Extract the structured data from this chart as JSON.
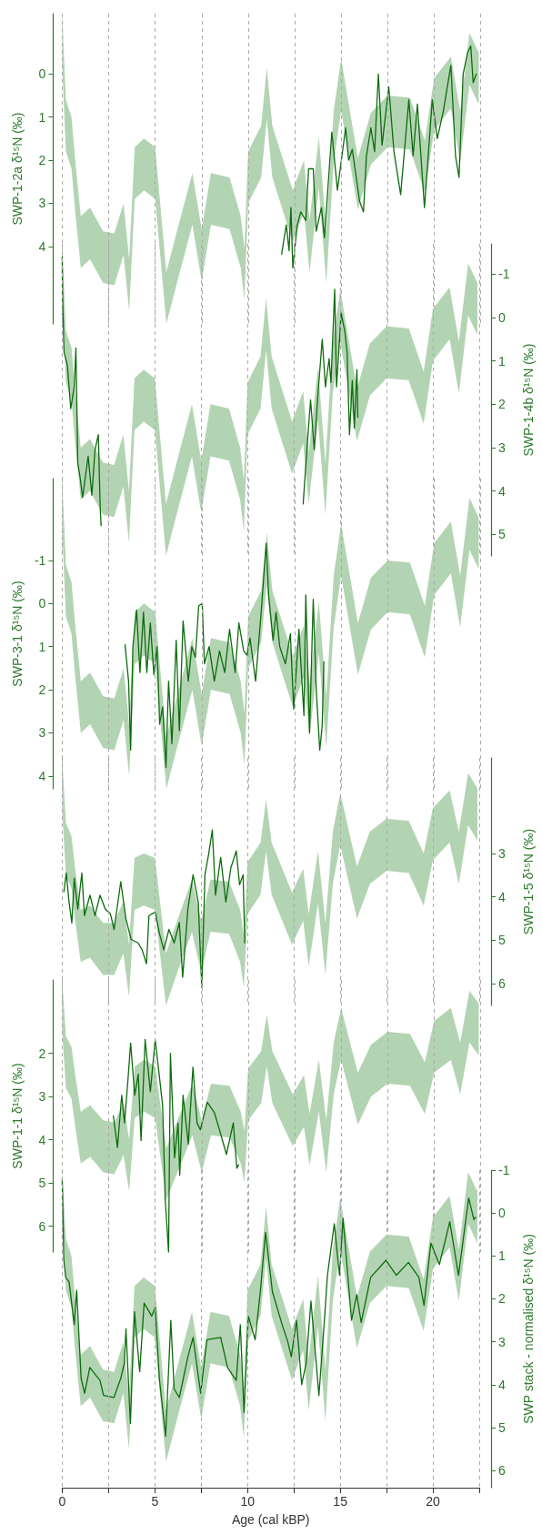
{
  "chart_data": [
    {
      "type": "line",
      "ylabel": "SWP-1-2a δ¹⁵N (‰)",
      "xlim": [
        0,
        22.5
      ],
      "xticks": [
        0,
        {
          "value": 2.5,
          "label": null
        },
        5,
        {
          "value": 7.5,
          "label": null
        },
        10,
        {
          "value": 12.5,
          "label": null
        },
        15,
        {
          "value": 17.5,
          "label": null
        },
        20,
        {
          "value": 22.5,
          "label": null
        }
      ],
      "ylim": [
        5.8,
        -1.4
      ],
      "yticks": [
        0,
        1,
        2,
        3,
        4
      ],
      "grid": "x",
      "tick_labels": "y",
      "series": [
        {
          "color": "#b3d4b3",
          "x": [
            0,
            0.2,
            0.5,
            0.7,
            1.0,
            1.5,
            2.2,
            2.8,
            3.3,
            3.6,
            3.9,
            4.4,
            5.0,
            5.6,
            6.2,
            7.0,
            7.5,
            8.0,
            9.0,
            9.6,
            9.8,
            10.0,
            10.7,
            11.0,
            11.3,
            12.4,
            13.0,
            13.3,
            13.8,
            14.2,
            14.6,
            15.0,
            15.9,
            16.6,
            17.5,
            18.7,
            19.5,
            20.0,
            20.9,
            21.4,
            21.9,
            22.4
          ],
          "values": [
            null,
            null,
            null,
            null,
            null,
            null,
            null,
            null,
            null,
            null,
            null,
            null,
            null,
            null,
            null,
            null,
            null,
            null,
            null,
            null,
            null,
            null,
            null,
            null,
            null,
            null,
            null,
            null,
            null,
            null,
            null,
            null,
            null,
            null,
            null,
            null,
            null,
            null,
            null,
            null,
            null,
            null
          ],
          "lower": [
            -1.4,
            0.6,
            1.0,
            2.0,
            3.3,
            3.1,
            3.65,
            3.7,
            3.0,
            4.3,
            1.7,
            1.5,
            1.7,
            4.6,
            3.6,
            2.3,
            3.6,
            2.3,
            2.4,
            3.3,
            4.05,
            1.8,
            1.2,
            -0.15,
            1.2,
            2.7,
            2.0,
            3.4,
            1.45,
            3.65,
            0.85,
            -0.35,
            1.95,
            0.9,
            0.5,
            0.55,
            1.55,
            0.1,
            -0.4,
            0.85,
            -0.95,
            -0.5
          ],
          "upper": [
            -0.2,
            1.8,
            2.2,
            3.2,
            4.5,
            4.3,
            4.85,
            4.9,
            4.2,
            5.5,
            2.9,
            2.7,
            2.9,
            5.8,
            4.8,
            3.5,
            4.8,
            3.5,
            3.6,
            4.5,
            5.25,
            3.0,
            2.4,
            1.05,
            2.4,
            3.9,
            3.2,
            4.6,
            2.65,
            4.85,
            2.05,
            0.85,
            3.15,
            2.1,
            1.7,
            1.75,
            2.75,
            1.3,
            0.8,
            2.05,
            0.25,
            0.7
          ]
        },
        {
          "color": "#0d6b0d",
          "x": [
            11.8,
            12.05,
            12.2,
            12.3,
            12.4,
            12.64,
            12.83,
            13.1,
            13.25,
            13.5,
            13.66,
            13.94,
            14.1,
            14.5,
            14.8,
            15.24,
            15.4,
            15.6,
            15.99,
            16.2,
            16.36,
            16.6,
            16.8,
            17.0,
            17.2,
            17.56,
            17.84,
            18.2,
            18.64,
            18.87,
            19.1,
            19.48,
            19.9,
            20.17,
            20.5,
            20.9,
            21.15,
            21.34,
            21.56,
            21.8,
            21.97,
            22.1,
            22.27
          ],
          "values": [
            4.18,
            3.5,
            4.1,
            3.1,
            4.5,
            3.5,
            3.2,
            3.4,
            2.2,
            2.2,
            3.65,
            3.1,
            3.8,
            1.35,
            2.7,
            1.25,
            2.0,
            1.75,
            2.95,
            3.2,
            1.9,
            1.25,
            1.8,
            0.0,
            1.65,
            0.3,
            1.8,
            2.8,
            0.6,
            1.9,
            0.7,
            3.1,
            0.6,
            1.5,
            0.85,
            -0.2,
            1.9,
            2.4,
            0.0,
            -0.5,
            -0.65,
            0.2,
            0.0
          ]
        }
      ]
    },
    {
      "type": "line",
      "ylabel": "SWP-1-4b δ¹⁵N (‰)",
      "xlim": [
        0,
        22.5
      ],
      "xticks": [
        0,
        {
          "value": 2.5,
          "label": null
        },
        5,
        {
          "value": 7.5,
          "label": null
        },
        10,
        {
          "value": 12.5,
          "label": null
        },
        15,
        {
          "value": 17.5,
          "label": null
        },
        20,
        {
          "value": 22.5,
          "label": null
        }
      ],
      "ylim": [
        5.5,
        -1.7
      ],
      "yticks": [
        -1,
        0,
        1,
        2,
        3,
        4,
        5
      ],
      "grid": "x",
      "tick_labels": "y",
      "series": [
        {
          "color": "#b3d4b3",
          "x": [
            0,
            0.2,
            0.5,
            0.7,
            1.0,
            1.5,
            2.2,
            2.8,
            3.3,
            3.6,
            3.9,
            4.4,
            5.0,
            5.6,
            6.2,
            7.0,
            7.5,
            8.0,
            9.0,
            9.6,
            9.8,
            10.0,
            10.7,
            11.0,
            11.3,
            12.4,
            13.0,
            13.3,
            13.8,
            14.2,
            14.6,
            15.0,
            15.9,
            16.6,
            17.5,
            18.7,
            19.5,
            20.0,
            20.9,
            21.4,
            21.9,
            22.4
          ],
          "values": [
            null,
            null,
            null,
            null,
            null,
            null,
            null,
            null,
            null,
            null,
            null,
            null,
            null,
            null,
            null,
            null,
            null,
            null,
            null,
            null,
            null,
            null,
            null,
            null,
            null,
            null,
            null,
            null,
            null,
            null,
            null,
            null,
            null,
            null,
            null,
            null,
            null,
            null,
            null,
            null,
            null,
            null
          ],
          "lower": [
            -1.7,
            0.3,
            0.7,
            1.7,
            3.0,
            2.8,
            3.35,
            3.4,
            2.7,
            4.0,
            1.4,
            1.2,
            1.4,
            4.3,
            3.3,
            2.0,
            3.3,
            2.0,
            2.1,
            3.0,
            3.75,
            1.5,
            0.9,
            -0.45,
            0.9,
            2.4,
            1.7,
            3.1,
            1.15,
            3.35,
            0.55,
            -0.65,
            1.65,
            0.6,
            0.2,
            0.25,
            1.25,
            -0.2,
            -0.7,
            0.55,
            -1.25,
            -0.8
          ],
          "upper": [
            -0.5,
            1.5,
            1.9,
            2.9,
            4.2,
            4.0,
            4.55,
            4.6,
            3.9,
            5.2,
            2.6,
            2.4,
            2.6,
            5.5,
            4.5,
            3.2,
            4.5,
            3.2,
            3.3,
            4.2,
            4.95,
            2.7,
            2.1,
            0.75,
            2.1,
            3.6,
            2.9,
            4.3,
            2.35,
            4.55,
            1.75,
            0.55,
            2.85,
            1.8,
            1.4,
            1.45,
            2.45,
            1.0,
            0.5,
            1.75,
            -0.05,
            0.4
          ]
        },
        {
          "color": "#0d6b0d",
          "x": [
            0,
            0.02,
            0.1,
            0.28,
            0.46,
            0.65,
            0.74,
            0.84,
            0.97,
            1.1,
            1.4,
            1.6,
            1.77,
            1.95,
            2.05,
            2.1,
            7,
            13.0,
            13.2,
            13.4,
            13.6,
            13.8,
            14.03,
            14.2,
            14.4,
            14.5,
            14.7,
            14.8,
            15.05,
            15.24,
            15.37,
            15.5,
            15.65,
            15.76,
            15.9,
            15.95
          ],
          "values": [
            -1.4,
            -0.5,
            0.8,
            1.1,
            2.1,
            1.6,
            0.7,
            3.35,
            3.7,
            4.15,
            3.2,
            4.1,
            3.05,
            2.7,
            4.4,
            4.8,
            null,
            4.3,
            3.05,
            1.9,
            3.05,
            1.75,
            0.5,
            1.6,
            0.95,
            1.5,
            -0.65,
            1.6,
            -0.1,
            0.3,
            0.8,
            2.7,
            1.45,
            2.55,
            1.2,
            2.3
          ]
        }
      ]
    },
    {
      "type": "line",
      "ylabel": "SWP-3-1 δ¹⁵N (‰)",
      "xlim": [
        0,
        22.5
      ],
      "xticks": [
        0,
        {
          "value": 2.5,
          "label": null
        },
        5,
        {
          "value": 7.5,
          "label": null
        },
        10,
        {
          "value": 12.5,
          "label": null
        },
        15,
        {
          "value": 17.5,
          "label": null
        },
        20,
        {
          "value": 22.5,
          "label": null
        }
      ],
      "ylim": [
        4.3,
        -2.9
      ],
      "yticks": [
        -1,
        0,
        1,
        2,
        3,
        4
      ],
      "grid": "x",
      "tick_labels": "y",
      "series": [
        {
          "color": "#b3d4b3",
          "x": [
            0,
            0.2,
            0.5,
            0.7,
            1.0,
            1.5,
            2.2,
            2.8,
            3.3,
            3.6,
            3.9,
            4.4,
            5.0,
            5.6,
            6.2,
            7.0,
            7.5,
            8.0,
            9.0,
            9.6,
            9.8,
            10.0,
            10.7,
            11.0,
            11.3,
            12.4,
            13.0,
            13.3,
            13.8,
            14.2,
            14.6,
            15.0,
            15.9,
            16.6,
            17.5,
            18.7,
            19.5,
            20.0,
            20.9,
            21.4,
            21.9,
            22.4
          ],
          "values": [
            null,
            null,
            null,
            null,
            null,
            null,
            null,
            null,
            null,
            null,
            null,
            null,
            null,
            null,
            null,
            null,
            null,
            null,
            null,
            null,
            null,
            null,
            null,
            null,
            null,
            null,
            null,
            null,
            null,
            null,
            null,
            null,
            null,
            null,
            null,
            null,
            null,
            null,
            null,
            null,
            null,
            null
          ],
          "lower": [
            -2.9,
            -0.9,
            -0.5,
            0.5,
            1.8,
            1.6,
            2.15,
            2.2,
            1.5,
            2.8,
            0.2,
            0.0,
            0.2,
            3.1,
            2.1,
            0.8,
            2.1,
            0.8,
            0.9,
            1.8,
            2.55,
            0.3,
            -0.3,
            -1.65,
            -0.3,
            1.2,
            0.5,
            1.9,
            -0.05,
            2.15,
            -0.65,
            -1.85,
            0.45,
            -0.6,
            -1.0,
            -0.95,
            0.05,
            -1.4,
            -1.9,
            -0.65,
            -2.45,
            -2.0
          ],
          "upper": [
            -1.7,
            0.3,
            0.7,
            1.7,
            3.0,
            2.8,
            3.35,
            3.4,
            2.7,
            4.0,
            1.4,
            1.2,
            1.4,
            4.3,
            3.3,
            2.0,
            3.3,
            2.0,
            2.1,
            3.0,
            3.75,
            1.5,
            0.9,
            -0.45,
            0.9,
            2.4,
            1.7,
            3.1,
            1.15,
            3.35,
            0.55,
            -0.65,
            1.65,
            0.6,
            0.2,
            0.25,
            1.25,
            -0.2,
            -0.7,
            0.55,
            -1.25,
            -0.8
          ]
        },
        {
          "color": "#0d6b0d",
          "x": [
            3.38,
            3.57,
            3.68,
            3.8,
            4.0,
            4.18,
            4.37,
            4.55,
            4.74,
            4.93,
            5.1,
            5.24,
            5.4,
            5.58,
            5.72,
            5.9,
            6.13,
            6.3,
            6.5,
            6.78,
            6.97,
            7.16,
            7.34,
            7.53,
            7.65,
            7.9,
            8.18,
            8.46,
            8.74,
            9.0,
            9.3,
            9.5,
            9.76,
            9.94,
            10.1,
            10.4,
            10.7,
            10.97,
            11.1,
            11.34,
            11.5,
            11.7,
            12.0,
            12.27,
            12.45,
            12.73,
            13.0,
            13.1,
            13.3,
            13.5,
            13.66,
            13.85,
            13.98,
            14.07
          ],
          "values": [
            0.95,
            1.8,
            3.4,
            1.0,
            0.15,
            1.6,
            0.2,
            1.6,
            0.45,
            1.65,
            1.0,
            2.8,
            2.4,
            3.8,
            1.8,
            3.25,
            0.85,
            2.95,
            0.4,
            1.8,
            1.0,
            1.25,
            0.05,
            0.0,
            1.4,
            1.0,
            1.8,
            1.1,
            1.6,
            0.6,
            1.6,
            0.45,
            1.1,
            1.2,
            0.8,
            1.8,
            0.2,
            -1.4,
            -0.2,
            0.85,
            0.2,
            1.0,
            1.4,
            0.7,
            2.45,
            0.6,
            2.6,
            -0.2,
            3.0,
            -0.1,
            2.0,
            3.4,
            2.85,
            1.35
          ]
        }
      ]
    },
    {
      "type": "line",
      "ylabel": "SWP-1-5 δ¹⁵N (‰)",
      "xlim": [
        0,
        22.5
      ],
      "xticks": [
        0,
        {
          "value": 2.5,
          "label": null
        },
        5,
        {
          "value": 7.5,
          "label": null
        },
        10,
        {
          "value": 12.5,
          "label": null
        },
        15,
        {
          "value": 17.5,
          "label": null
        },
        20,
        {
          "value": 22.5,
          "label": null
        }
      ],
      "ylim": [
        6.5,
        0.8
      ],
      "yticks": [
        3,
        4,
        5,
        6
      ],
      "grid": "x",
      "tick_labels": "y",
      "series": [
        {
          "color": "#b3d4b3",
          "x": [
            0,
            0.2,
            0.5,
            0.7,
            1.0,
            1.5,
            2.2,
            2.8,
            3.3,
            3.6,
            3.9,
            4.4,
            5.0,
            5.6,
            6.2,
            7.0,
            7.5,
            8.0,
            9.0,
            9.6,
            9.8,
            10.0,
            10.7,
            11.0,
            11.3,
            12.4,
            13.0,
            13.3,
            13.8,
            14.2,
            14.6,
            15.0,
            15.9,
            16.6,
            17.5,
            18.7,
            19.5,
            20.0,
            20.9,
            21.4,
            21.9,
            22.4
          ],
          "values": [
            null,
            null,
            null,
            null,
            null,
            null,
            null,
            null,
            null,
            null,
            null,
            null,
            null,
            null,
            null,
            null,
            null,
            null,
            null,
            null,
            null,
            null,
            null,
            null,
            null,
            null,
            null,
            null,
            null,
            null,
            null,
            null,
            null,
            null,
            null,
            null,
            null,
            null,
            null,
            null,
            null,
            null
          ],
          "lower": [
            0.8,
            2.3,
            2.6,
            3.35,
            4.3,
            4.2,
            4.6,
            4.6,
            4.1,
            5.1,
            3.1,
            3.0,
            3.1,
            5.3,
            4.55,
            3.6,
            4.55,
            3.6,
            3.65,
            4.3,
            4.9,
            3.2,
            2.75,
            1.75,
            2.75,
            3.9,
            3.35,
            4.4,
            2.95,
            4.6,
            2.5,
            1.6,
            3.3,
            2.5,
            2.2,
            2.25,
            3.0,
            1.95,
            1.55,
            2.5,
            1.15,
            1.5
          ],
          "upper": [
            2.0,
            3.5,
            3.8,
            4.55,
            5.5,
            5.4,
            5.8,
            5.8,
            5.3,
            6.3,
            4.3,
            4.2,
            4.3,
            6.5,
            5.75,
            4.8,
            5.75,
            4.8,
            4.85,
            5.5,
            6.1,
            4.4,
            3.95,
            2.95,
            3.95,
            5.1,
            4.55,
            5.6,
            4.15,
            5.8,
            3.7,
            2.8,
            4.5,
            3.7,
            3.4,
            3.45,
            4.2,
            3.15,
            2.75,
            3.7,
            2.35,
            2.7
          ]
        },
        {
          "color": "#0d6b0d",
          "x": [
            0.09,
            0.22,
            0.37,
            0.52,
            0.65,
            0.84,
            1.06,
            1.2,
            1.5,
            1.77,
            2.04,
            2.32,
            2.6,
            2.8,
            3.16,
            3.44,
            3.72,
            4.09,
            4.31,
            4.55,
            4.68,
            5.02,
            5.24,
            5.48,
            5.76,
            6.04,
            6.32,
            6.5,
            6.78,
            7.06,
            7.34,
            7.53,
            7.7,
            7.9,
            8.1,
            8.27,
            8.55,
            8.83,
            9.1,
            9.39,
            9.57,
            9.76,
            9.85
          ],
          "values": [
            3.88,
            3.45,
            4.12,
            4.6,
            3.57,
            4.28,
            3.45,
            4.43,
            3.96,
            4.43,
            3.96,
            4.28,
            4.39,
            4.75,
            3.65,
            4.51,
            4.98,
            5.06,
            5.22,
            5.54,
            4.43,
            4.35,
            4.83,
            5.22,
            4.75,
            5.06,
            4.59,
            5.85,
            4.28,
            3.49,
            4.12,
            6.09,
            3.49,
            3.02,
            2.46,
            3.96,
            3.09,
            4.12,
            3.33,
            2.94,
            3.72,
            3.49,
            5.06
          ]
        }
      ]
    },
    {
      "type": "line",
      "ylabel": "SWP-1-1 δ¹⁵N (‰)",
      "xlim": [
        0,
        22.5
      ],
      "xticks": [
        0,
        {
          "value": 2.5,
          "label": null
        },
        5,
        {
          "value": 7.5,
          "label": null
        },
        10,
        {
          "value": 12.5,
          "label": null
        },
        15,
        {
          "value": 17.5,
          "label": null
        },
        20,
        {
          "value": 22.5,
          "label": null
        }
      ],
      "ylim": [
        6.6,
        0.3
      ],
      "yticks": [
        2,
        3,
        4,
        5,
        6
      ],
      "grid": "x",
      "tick_labels": "y",
      "series": [
        {
          "color": "#b3d4b3",
          "x": [
            0,
            0.2,
            0.5,
            0.7,
            1.0,
            1.5,
            2.2,
            2.8,
            3.3,
            3.6,
            3.9,
            4.4,
            5.0,
            5.6,
            6.2,
            7.0,
            7.5,
            8.0,
            9.0,
            9.6,
            9.8,
            10.0,
            10.7,
            11.0,
            11.3,
            12.4,
            13.0,
            13.3,
            13.8,
            14.2,
            14.6,
            15.0,
            15.9,
            16.6,
            17.5,
            18.7,
            19.5,
            20.0,
            20.9,
            21.4,
            21.9,
            22.4
          ],
          "values": [
            null,
            null,
            null,
            null,
            null,
            null,
            null,
            null,
            null,
            null,
            null,
            null,
            null,
            null,
            null,
            null,
            null,
            null,
            null,
            null,
            null,
            null,
            null,
            null,
            null,
            null,
            null,
            null,
            null,
            null,
            null,
            null,
            null,
            null,
            null,
            null,
            null,
            null,
            null,
            null,
            null,
            null
          ],
          "lower": [
            0.3,
            1.6,
            1.85,
            2.5,
            3.35,
            3.2,
            3.55,
            3.6,
            3.15,
            4.0,
            2.3,
            2.15,
            2.3,
            4.2,
            3.55,
            2.7,
            3.55,
            2.7,
            2.75,
            3.35,
            3.8,
            2.35,
            1.95,
            1.1,
            1.95,
            2.95,
            2.5,
            3.4,
            2.15,
            3.55,
            1.75,
            0.95,
            2.45,
            1.8,
            1.5,
            1.55,
            2.2,
            1.25,
            0.95,
            1.75,
            0.55,
            0.85
          ],
          "upper": [
            1.5,
            2.8,
            3.05,
            3.7,
            4.55,
            4.4,
            4.75,
            4.8,
            4.35,
            5.2,
            3.5,
            3.35,
            3.5,
            5.4,
            4.75,
            3.9,
            4.75,
            3.9,
            3.95,
            4.55,
            5.0,
            3.55,
            3.15,
            2.3,
            3.15,
            4.15,
            3.7,
            4.6,
            3.35,
            4.75,
            2.95,
            2.15,
            3.65,
            3.0,
            2.7,
            2.75,
            3.4,
            2.45,
            2.15,
            2.95,
            1.75,
            2.05
          ]
        },
        {
          "color": "#0d6b0d",
          "x": [
            2.75,
            2.97,
            3.2,
            3.35,
            3.53,
            3.68,
            3.9,
            4.09,
            4.24,
            4.46,
            4.74,
            5.0,
            5.17,
            5.4,
            5.54,
            5.72,
            5.82,
            6.04,
            6.23,
            6.32,
            6.5,
            6.78,
            7.03,
            7.25,
            7.43,
            7.8,
            8.18,
            8.46,
            8.83,
            9.2,
            9.39,
            9.48
          ],
          "values": [
            3.45,
            4.18,
            2.97,
            3.61,
            2.65,
            1.76,
            2.97,
            2.48,
            4.02,
            1.68,
            2.89,
            1.68,
            2.32,
            3.21,
            5.39,
            6.6,
            2.0,
            4.42,
            3.61,
            4.82,
            2.97,
            4.1,
            2.32,
            3.61,
            3.77,
            3.13,
            3.37,
            3.77,
            4.34,
            3.61,
            4.66,
            4.58
          ]
        }
      ]
    },
    {
      "type": "line",
      "xlabel": "Age (cal kBP)",
      "ylabel": "SWP stack - normalised δ¹⁵N (‰)",
      "xlim": [
        0,
        22.5
      ],
      "xticks": [
        0,
        {
          "value": 2.5,
          "label": null
        },
        5,
        {
          "value": 7.5,
          "label": null
        },
        10,
        {
          "value": 12.5,
          "label": null
        },
        15,
        {
          "value": 17.5,
          "label": null
        },
        20,
        {
          "value": 22.5,
          "label": null
        }
      ],
      "ylim": [
        6.4,
        -1
      ],
      "yticks": [
        -1,
        0,
        1,
        2,
        3,
        4,
        5,
        6
      ],
      "grid": "x",
      "series": [
        {
          "color": "#b3d4b3",
          "x": [
            0,
            0.2,
            0.5,
            0.7,
            1.0,
            1.5,
            2.2,
            2.8,
            3.3,
            3.6,
            3.9,
            4.4,
            5.0,
            5.6,
            6.2,
            7.0,
            7.5,
            8.0,
            9.0,
            9.6,
            9.8,
            10.0,
            10.7,
            11.0,
            11.3,
            12.4,
            13.0,
            13.3,
            13.8,
            14.2,
            14.6,
            15.0,
            15.9,
            16.6,
            17.5,
            18.7,
            19.5,
            20.0,
            20.9,
            21.4,
            21.9,
            22.4
          ],
          "values": [
            null,
            null,
            null,
            null,
            null,
            null,
            null,
            null,
            null,
            null,
            null,
            null,
            null,
            null,
            null,
            null,
            null,
            null,
            null,
            null,
            null,
            null,
            null,
            null,
            null,
            null,
            null,
            null,
            null,
            null,
            null,
            null,
            null,
            null,
            null,
            null,
            null,
            null,
            null,
            null,
            null,
            null
          ],
          "lower": [
            -1.0,
            0.6,
            1.0,
            2.0,
            3.3,
            3.1,
            3.65,
            3.7,
            3.0,
            4.3,
            1.7,
            1.5,
            1.7,
            4.6,
            3.6,
            2.3,
            3.6,
            2.3,
            2.4,
            3.3,
            4.05,
            1.8,
            1.2,
            -0.15,
            1.2,
            2.7,
            2.0,
            3.4,
            1.45,
            3.65,
            0.85,
            -0.35,
            1.95,
            0.9,
            0.5,
            0.55,
            1.55,
            0.1,
            -0.4,
            0.85,
            -0.95,
            -0.5
          ],
          "upper": [
            -0.2,
            1.8,
            2.2,
            3.2,
            4.5,
            4.3,
            4.85,
            4.9,
            4.2,
            5.5,
            2.9,
            2.7,
            2.9,
            5.8,
            4.8,
            3.5,
            4.8,
            3.5,
            3.6,
            4.5,
            5.25,
            3.0,
            2.4,
            1.05,
            2.4,
            3.9,
            3.2,
            4.6,
            2.65,
            4.85,
            2.05,
            0.85,
            3.15,
            2.1,
            1.7,
            1.75,
            2.75,
            1.3,
            0.8,
            2.05,
            0.25,
            0.7
          ]
        },
        {
          "color": "#0d6b0d",
          "x": [
            0,
            0.09,
            0.19,
            0.37,
            0.65,
            0.78,
            1.02,
            1.21,
            1.49,
            2.04,
            2.23,
            2.79,
            3.16,
            3.35,
            3.44,
            3.68,
            3.9,
            4.18,
            4.42,
            4.83,
            5.02,
            5.24,
            5.58,
            5.86,
            6.04,
            6.32,
            6.78,
            7.06,
            7.47,
            7.81,
            8.55,
            8.92,
            9.39,
            9.61,
            9.81,
            10.04,
            10.41,
            10.69,
            10.97,
            11.34,
            11.9,
            12.17,
            12.36,
            12.64,
            12.92,
            13.16,
            13.42,
            13.85,
            14.13,
            14.31,
            14.68,
            14.96,
            15.15,
            15.61,
            15.89,
            16.13,
            16.64,
            17.47,
            18.03,
            18.68,
            19.24,
            19.52,
            19.89,
            20.35,
            20.91,
            21.38,
            21.93,
            22.21,
            22.3
          ],
          "values": [
            -0.8,
            1.1,
            1.5,
            1.6,
            2.6,
            1.8,
            3.85,
            4.2,
            3.6,
            3.9,
            4.25,
            4.3,
            3.85,
            3.5,
            2.7,
            4.9,
            2.3,
            3.7,
            2.1,
            2.4,
            2.2,
            3.85,
            5.2,
            2.5,
            4.1,
            4.3,
            3.35,
            2.9,
            4.2,
            2.95,
            2.9,
            3.6,
            3.9,
            2.6,
            4.65,
            2.4,
            2.95,
            1.83,
            0.45,
            1.83,
            2.65,
            3.0,
            3.35,
            2.5,
            4.0,
            3.5,
            2.05,
            4.25,
            2.6,
            1.45,
            0.25,
            1.45,
            0.12,
            2.5,
            1.9,
            2.55,
            1.5,
            1.1,
            1.45,
            1.15,
            1.5,
            2.15,
            0.7,
            1.2,
            0.2,
            1.45,
            -0.35,
            0.15,
            0.1
          ]
        }
      ]
    }
  ]
}
